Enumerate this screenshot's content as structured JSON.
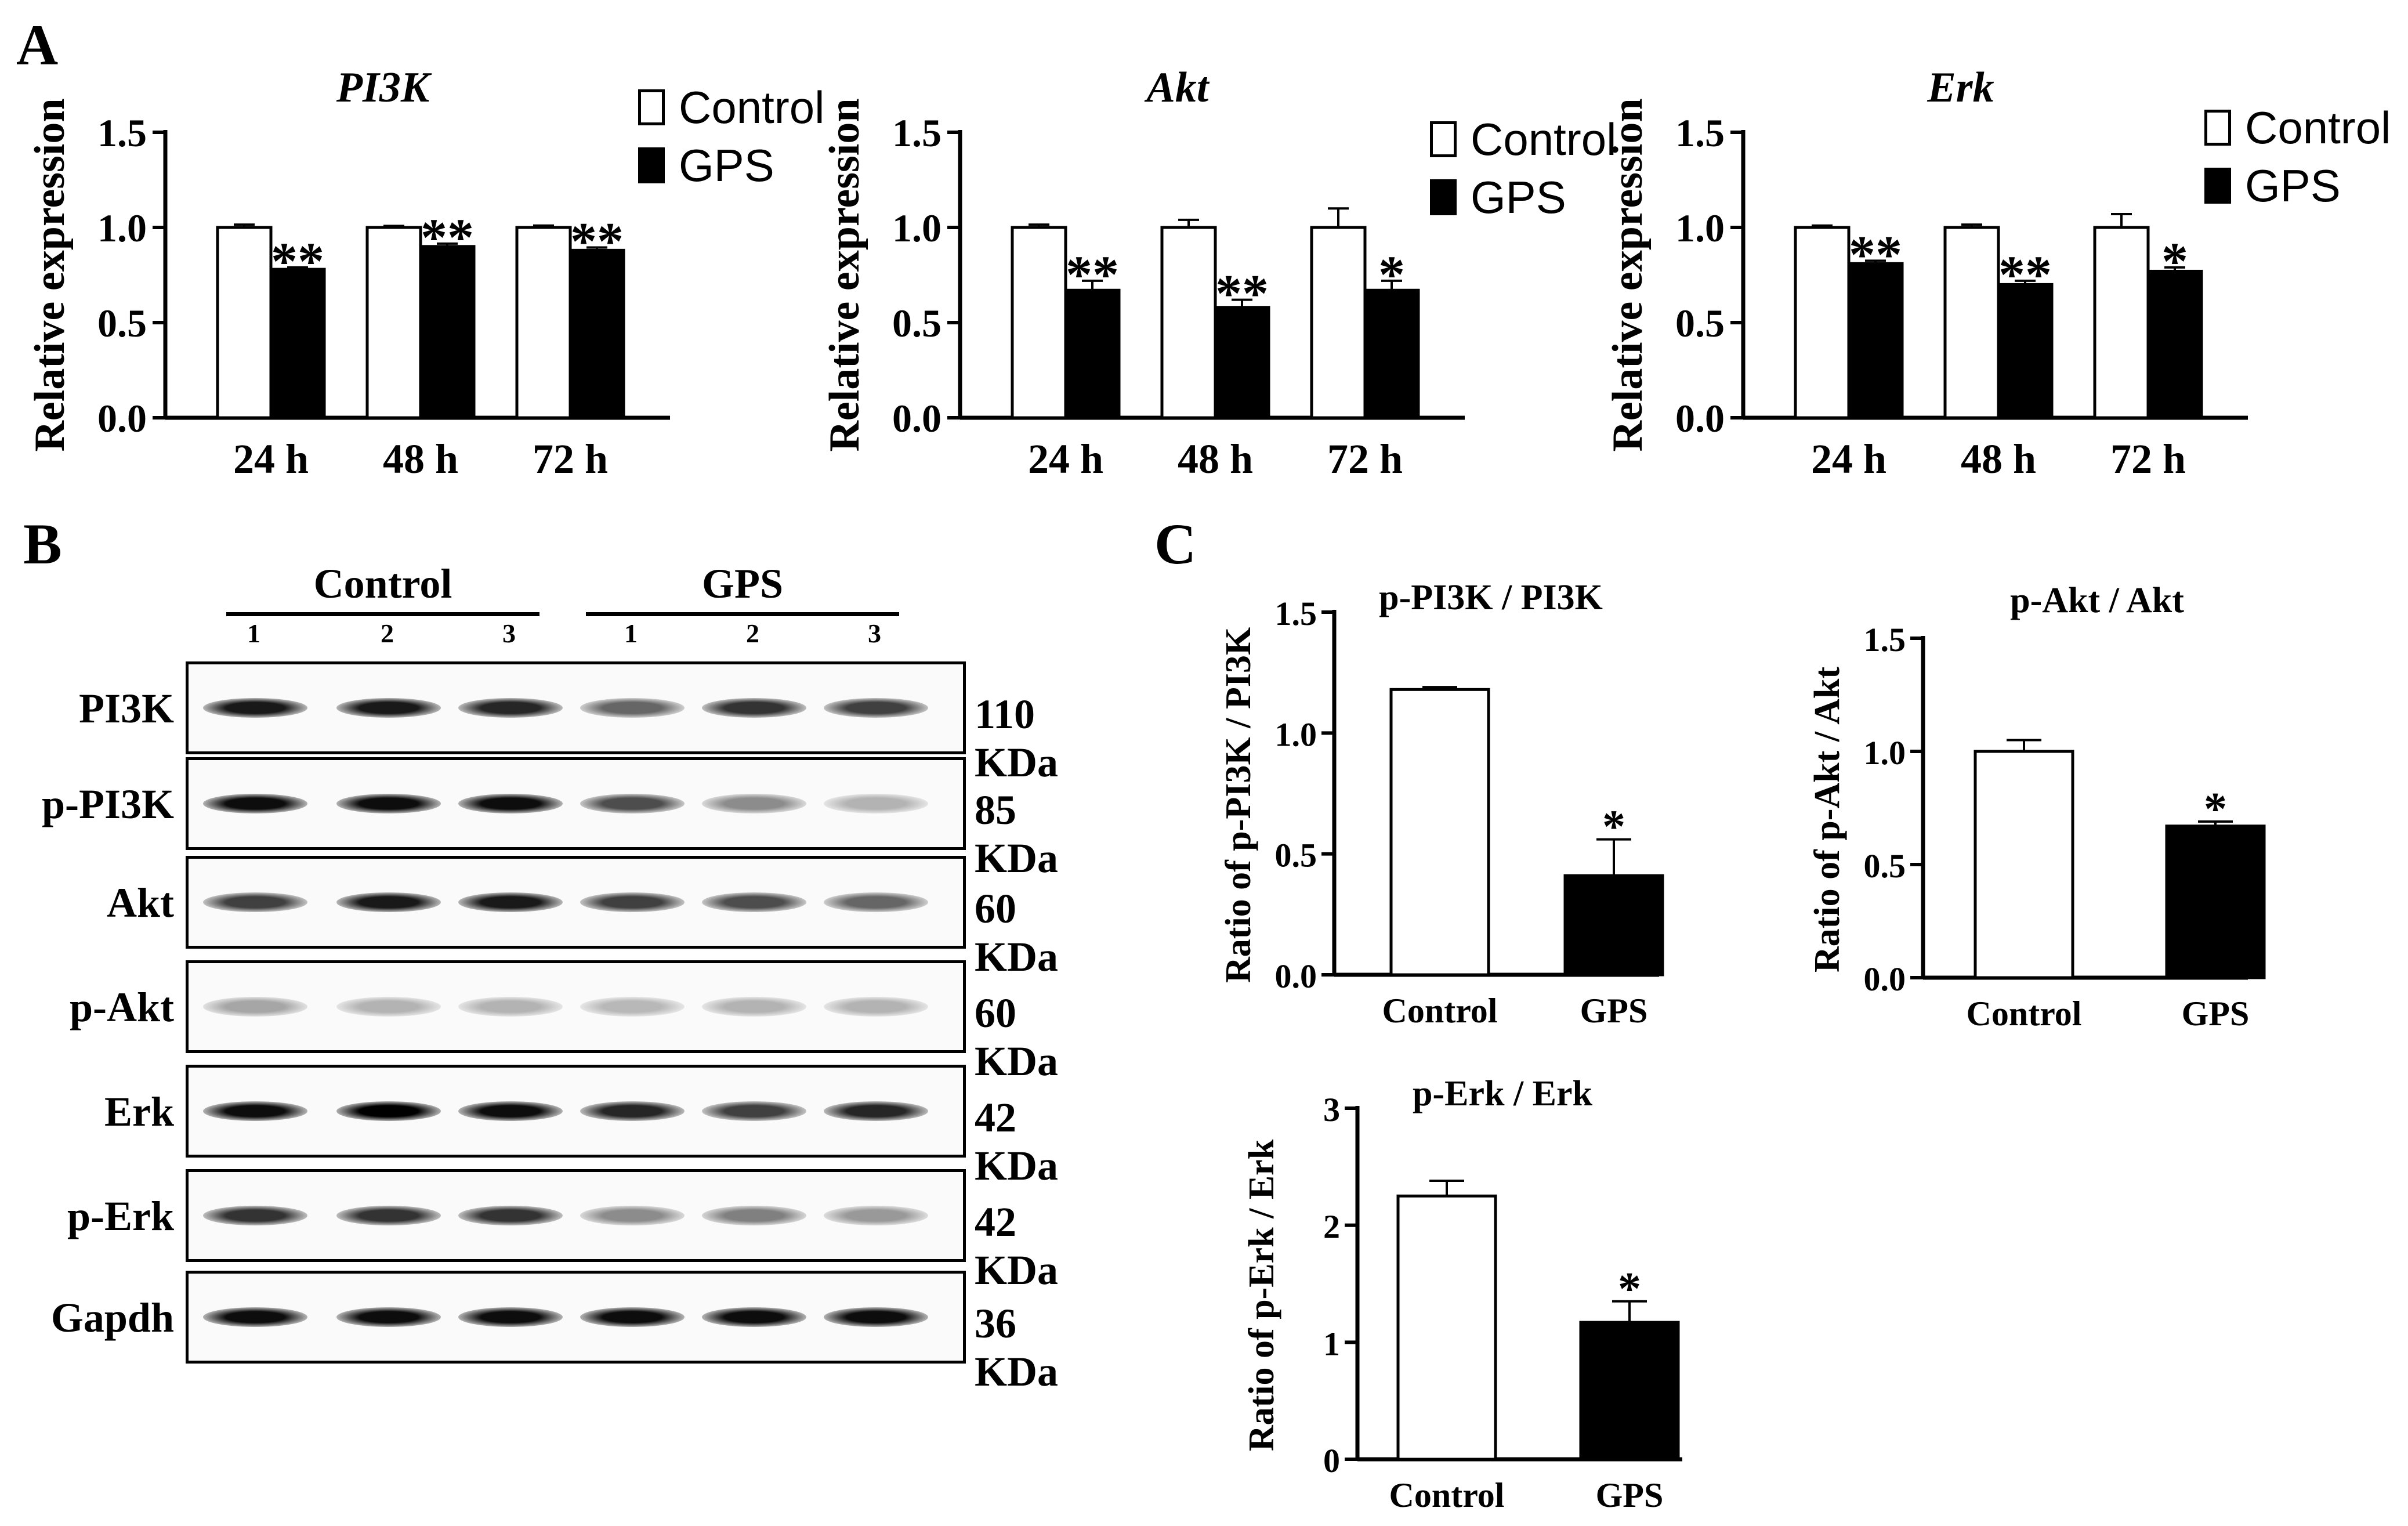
{
  "panels": {
    "A": "A",
    "B": "B",
    "C": "C"
  },
  "legend": {
    "control": "Control",
    "gps": "GPS"
  },
  "colors": {
    "control": "#ffffff",
    "gps": "#000000"
  },
  "chart_data": [
    {
      "type": "bar",
      "title": "PI3K",
      "ylabel": "Relative expression",
      "categories": [
        "24 h",
        "48 h",
        "72 h"
      ],
      "ylim": [
        0,
        1.5
      ],
      "yticks": [
        "0.0",
        "0.5",
        "1.0",
        "1.5"
      ],
      "series": [
        {
          "name": "Control",
          "values": [
            1.0,
            1.0,
            1.0
          ],
          "errors": [
            0.015,
            0.008,
            0.01
          ]
        },
        {
          "name": "GPS",
          "values": [
            0.78,
            0.9,
            0.88
          ],
          "errors": [
            0.01,
            0.015,
            0.015
          ]
        }
      ],
      "significance": [
        "**",
        "**",
        "**"
      ]
    },
    {
      "type": "bar",
      "title": "Akt",
      "ylabel": "Relative expression",
      "categories": [
        "24 h",
        "48 h",
        "72 h"
      ],
      "ylim": [
        0,
        1.5
      ],
      "yticks": [
        "0.0",
        "0.5",
        "1.0",
        "1.5"
      ],
      "series": [
        {
          "name": "Control",
          "values": [
            1.0,
            1.0,
            1.0
          ],
          "errors": [
            0.015,
            0.04,
            0.1
          ]
        },
        {
          "name": "GPS",
          "values": [
            0.67,
            0.58,
            0.67
          ],
          "errors": [
            0.05,
            0.04,
            0.05
          ]
        }
      ],
      "significance": [
        "**",
        "**",
        "*"
      ]
    },
    {
      "type": "bar",
      "title": "Erk",
      "ylabel": "Relative expression",
      "categories": [
        "24 h",
        "48 h",
        "72 h"
      ],
      "ylim": [
        0,
        1.5
      ],
      "yticks": [
        "0.0",
        "0.5",
        "1.0",
        "1.5"
      ],
      "series": [
        {
          "name": "Control",
          "values": [
            1.0,
            1.0,
            1.0
          ],
          "errors": [
            0.01,
            0.015,
            0.07
          ]
        },
        {
          "name": "GPS",
          "values": [
            0.81,
            0.7,
            0.77
          ],
          "errors": [
            0.015,
            0.02,
            0.02
          ]
        }
      ],
      "significance": [
        "**",
        "**",
        "*"
      ]
    },
    {
      "type": "bar",
      "title": "p-PI3K / PI3K",
      "ylabel": "Ratio of  p-PI3K / PI3K",
      "categories": [
        "Control",
        "GPS"
      ],
      "ylim": [
        0,
        1.5
      ],
      "yticks": [
        "0.0",
        "0.5",
        "1.0",
        "1.5"
      ],
      "values": [
        1.18,
        0.41
      ],
      "errors": [
        0.01,
        0.15
      ],
      "significance": [
        "",
        "*"
      ]
    },
    {
      "type": "bar",
      "title": "p-Akt / Akt",
      "ylabel": "Ratio of  p-Akt / Akt",
      "categories": [
        "Control",
        "GPS"
      ],
      "ylim": [
        0,
        1.5
      ],
      "yticks": [
        "0.0",
        "0.5",
        "1.0",
        "1.5"
      ],
      "values": [
        1.0,
        0.67
      ],
      "errors": [
        0.05,
        0.02
      ],
      "significance": [
        "",
        "*"
      ]
    },
    {
      "type": "bar",
      "title": "p-Erk / Erk",
      "ylabel": "Ratio of  p-Erk / Erk",
      "categories": [
        "Control",
        "GPS"
      ],
      "ylim": [
        0,
        3
      ],
      "yticks": [
        "0",
        "1",
        "2",
        "3"
      ],
      "values": [
        2.25,
        1.17
      ],
      "errors": [
        0.13,
        0.18
      ],
      "significance": [
        "",
        "*"
      ]
    }
  ],
  "western_blot": {
    "groups": [
      "Control",
      "GPS"
    ],
    "lanes": [
      "1",
      "2",
      "3",
      "1",
      "2",
      "3"
    ],
    "rows": [
      {
        "label": "PI3K",
        "kda": "110 KDa",
        "intensity": [
          0.9,
          0.9,
          0.85,
          0.6,
          0.8,
          0.75
        ]
      },
      {
        "label": "p-PI3K",
        "kda": "85 KDa",
        "intensity": [
          0.95,
          0.95,
          0.95,
          0.7,
          0.45,
          0.3
        ]
      },
      {
        "label": "Akt",
        "kda": "60 KDa",
        "intensity": [
          0.75,
          0.9,
          0.9,
          0.75,
          0.7,
          0.6
        ]
      },
      {
        "label": "p-Akt",
        "kda": "60 KDa",
        "intensity": [
          0.35,
          0.3,
          0.3,
          0.28,
          0.3,
          0.3
        ]
      },
      {
        "label": "Erk",
        "kda": "42 KDa",
        "intensity": [
          0.95,
          1.0,
          0.95,
          0.85,
          0.75,
          0.85
        ]
      },
      {
        "label": "p-Erk",
        "kda": "42 KDa",
        "intensity": [
          0.8,
          0.8,
          0.8,
          0.45,
          0.5,
          0.4
        ]
      },
      {
        "label": "Gapdh",
        "kda": "36 KDa",
        "intensity": [
          0.95,
          0.95,
          0.95,
          0.95,
          0.95,
          0.95
        ]
      }
    ]
  }
}
